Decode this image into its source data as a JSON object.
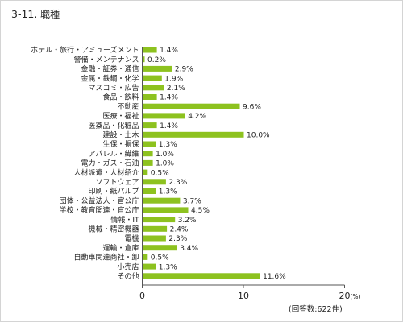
{
  "title_number": "3-11.",
  "title_text": "職種",
  "respondents_note": "(回答数:622件)",
  "colors": {
    "bar": "#8dc21f",
    "axis": "#555555",
    "border": "#d4d4d4"
  },
  "chart_data": {
    "type": "bar",
    "orientation": "horizontal",
    "title": "職種",
    "categories": [
      "ホテル・旅行・アミューズメント",
      "警備・メンテナンス",
      "金融・証券・通信",
      "金属・鉄鋼・化学",
      "マスコミ・広告",
      "食品・飲料",
      "不動産",
      "医療・福祉",
      "医薬品・化粧品",
      "建設・土木",
      "生保・損保",
      "アパレル・繊維",
      "電力・ガス・石油",
      "人材派遣・人材紹介",
      "ソフトウェア",
      "印刷・紙パルプ",
      "団体・公益法人・官公庁",
      "学校・教育関連・官公庁",
      "情報・IT",
      "機械・精密機器",
      "電機",
      "運輸・倉庫",
      "自動車関連商社・卸",
      "小売店",
      "その他"
    ],
    "values": [
      1.4,
      0.2,
      2.9,
      1.9,
      2.1,
      1.4,
      9.6,
      4.2,
      1.4,
      10.0,
      1.3,
      1.0,
      1.0,
      0.5,
      2.3,
      1.3,
      3.7,
      4.5,
      3.2,
      2.4,
      2.3,
      3.4,
      0.5,
      1.3,
      11.6
    ],
    "value_labels": [
      "1.4%",
      "0.2%",
      "2.9%",
      "1.9%",
      "2.1%",
      "1.4%",
      "9.6%",
      "4.2%",
      "1.4%",
      "10.0%",
      "1.3%",
      "1.0%",
      "1.0%",
      "0.5%",
      "2.3%",
      "1.3%",
      "3.7%",
      "4.5%",
      "3.2%",
      "2.4%",
      "2.3%",
      "3.4%",
      "0.5%",
      "1.3%",
      "11.6%"
    ],
    "x_ticks": [
      "0",
      "10",
      "20"
    ],
    "x_unit": "(%)",
    "xlim": [
      0,
      20
    ],
    "grid": false
  }
}
